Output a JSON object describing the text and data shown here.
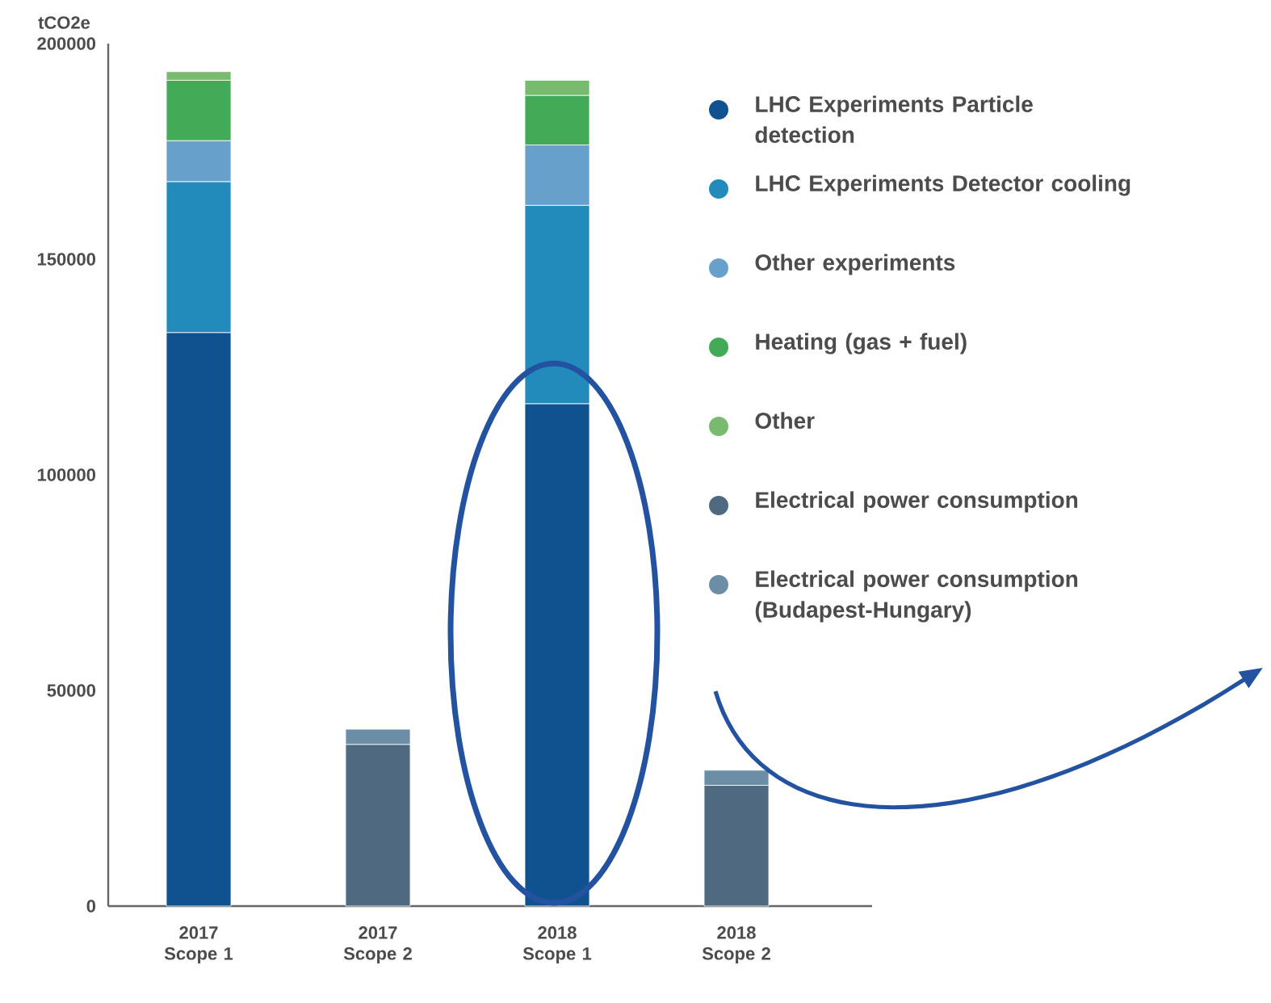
{
  "chart_data": {
    "type": "bar",
    "stacked": true,
    "ylabel": "tCO2e",
    "categories": [
      "2017 Scope 1",
      "2017 Scope 2",
      "2018 Scope 1",
      "2018 Scope 2"
    ],
    "series": [
      {
        "name": "LHC Experiments Particle detection",
        "color": "#10528f",
        "values": [
          133000,
          null,
          116500,
          null
        ]
      },
      {
        "name": "LHC Experiments Detector cooling",
        "color": "#228bbb",
        "values": [
          35000,
          null,
          46000,
          null
        ]
      },
      {
        "name": "Other experiments",
        "color": "#68a0cc",
        "values": [
          9500,
          null,
          14000,
          null
        ]
      },
      {
        "name": "Heating (gas + fuel)",
        "color": "#43ab57",
        "values": [
          14000,
          null,
          11500,
          null
        ]
      },
      {
        "name": "Other",
        "color": "#78bb6f",
        "values": [
          2000,
          null,
          3500,
          null
        ]
      },
      {
        "name": "Electrical power consumption",
        "color": "#4f6a80",
        "values": [
          null,
          37500,
          null,
          28000
        ]
      },
      {
        "name": "Electrical power consumption (Budapest-Hungary)",
        "color": "#6b8ea6",
        "values": [
          null,
          3500,
          null,
          3500
        ]
      }
    ],
    "ylim": [
      0,
      200000
    ],
    "yticks": [
      0,
      50000,
      100000,
      150000,
      200000
    ],
    "grid": false,
    "legend": "right"
  }
}
